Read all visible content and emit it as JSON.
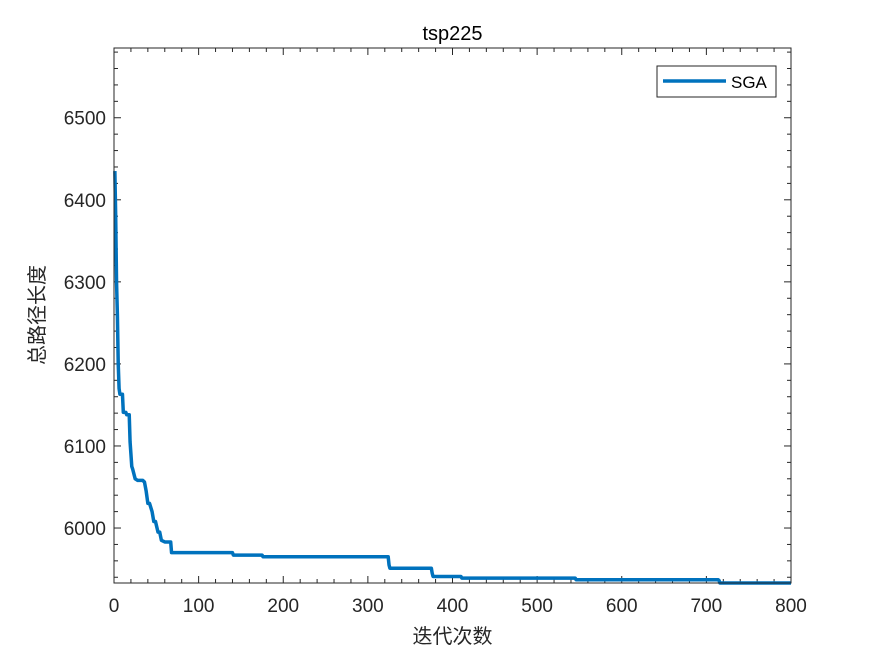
{
  "chart_data": {
    "type": "line",
    "title": "tsp225",
    "xlabel": "迭代次数",
    "ylabel": "总路径长度",
    "xlim": [
      0,
      800
    ],
    "ylim": [
      5933,
      6585
    ],
    "xticks": [
      0,
      100,
      200,
      300,
      400,
      500,
      600,
      700,
      800
    ],
    "yticks": [
      6000,
      6100,
      6200,
      6300,
      6400,
      6500
    ],
    "xtick_labels": [
      "0",
      "100",
      "200",
      "300",
      "400",
      "500",
      "600",
      "700",
      "800"
    ],
    "ytick_labels": [
      "6000",
      "6100",
      "6200",
      "6300",
      "6400",
      "6500"
    ],
    "grid": false,
    "legend": {
      "location": "top-right",
      "entries": [
        "SGA"
      ]
    },
    "series": [
      {
        "name": "SGA",
        "color": "#0072BD",
        "x": [
          1,
          2,
          3,
          4,
          5,
          6,
          7,
          8,
          10,
          11,
          14,
          15,
          18,
          19,
          20,
          21,
          22,
          25,
          28,
          34,
          36,
          38,
          40,
          42,
          45,
          47,
          49,
          52,
          54,
          56,
          60,
          65,
          67,
          68,
          69,
          70,
          140,
          141,
          175,
          176,
          324,
          325,
          326,
          375,
          376,
          377,
          410,
          411,
          545,
          546,
          714,
          715,
          716,
          800
        ],
        "y": [
          6435,
          6380,
          6300,
          6260,
          6200,
          6170,
          6163,
          6163,
          6163,
          6141,
          6141,
          6138,
          6138,
          6105,
          6090,
          6075,
          6072,
          6060,
          6058,
          6058,
          6056,
          6045,
          6030,
          6030,
          6020,
          6008,
          6008,
          5995,
          5995,
          5985,
          5983,
          5983,
          5983,
          5970,
          5970,
          5970,
          5970,
          5967,
          5967,
          5965,
          5965,
          5955,
          5951,
          5951,
          5945,
          5941,
          5941,
          5939,
          5939,
          5937,
          5937,
          5936,
          5933,
          5933
        ]
      }
    ]
  }
}
